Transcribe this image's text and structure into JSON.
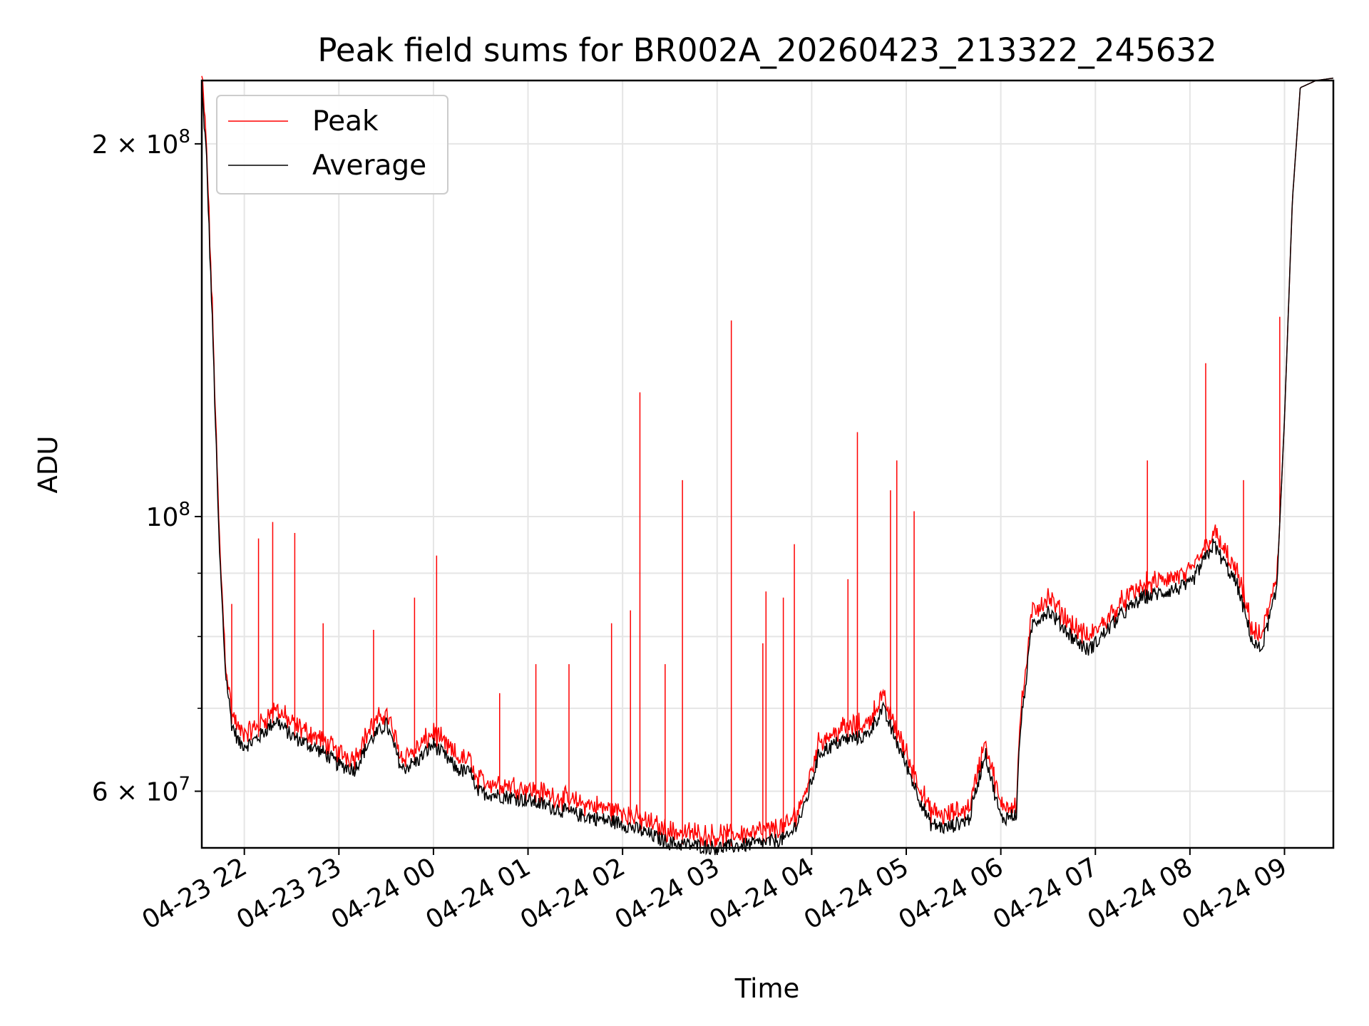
{
  "chart_data": {
    "type": "line",
    "title": "Peak field sums for BR002A_20260423_213322_245632",
    "xlabel": "Time",
    "ylabel": "ADU",
    "y_scale": "log",
    "ylim": [
      54000000,
      225000000
    ],
    "xlim": [
      "04-23 21:33",
      "04-24 09:31"
    ],
    "grid": true,
    "legend_position": "upper-left",
    "x_ticks": [
      "04-23 22",
      "04-23 23",
      "04-24 00",
      "04-24 01",
      "04-24 02",
      "04-24 03",
      "04-24 04",
      "04-24 05",
      "04-24 06",
      "04-24 07",
      "04-24 08",
      "04-24 09"
    ],
    "y_ticks_major": [
      {
        "value": 60000000,
        "label": "6 × 10^7"
      },
      {
        "value": 100000000,
        "label": "10^8"
      },
      {
        "value": 200000000,
        "label": "2 × 10^8"
      }
    ],
    "y_ticks_minor": [
      70000000,
      80000000,
      90000000
    ],
    "series": [
      {
        "name": "Average",
        "color": "#000000",
        "x": [
          "04-23 21:33",
          "04-23 21:36",
          "04-23 21:40",
          "04-23 21:44",
          "04-23 21:48",
          "04-23 21:52",
          "04-23 21:57",
          "04-23 22:03",
          "04-23 22:10",
          "04-23 22:20",
          "04-23 22:30",
          "04-23 22:40",
          "04-23 22:50",
          "04-23 23:00",
          "04-23 23:10",
          "04-23 23:20",
          "04-23 23:30",
          "04-23 23:40",
          "04-23 23:50",
          "04-24 00:00",
          "04-24 00:15",
          "04-24 00:25",
          "04-24 00:26",
          "04-24 01:00",
          "04-24 01:30",
          "04-24 02:00",
          "04-24 02:30",
          "04-24 03:00",
          "04-24 03:30",
          "04-24 03:45",
          "04-24 03:47",
          "04-24 03:55",
          "04-24 04:05",
          "04-24 04:10",
          "04-24 04:20",
          "04-24 04:35",
          "04-24 04:45",
          "04-24 05:00",
          "04-24 05:15",
          "04-24 05:25",
          "04-24 05:40",
          "04-24 05:50",
          "04-24 06:00",
          "04-24 06:10",
          "04-24 06:12",
          "04-24 06:20",
          "04-24 06:30",
          "04-24 06:45",
          "04-24 06:55",
          "04-24 07:00",
          "04-24 07:15",
          "04-24 07:30",
          "04-24 07:45",
          "04-24 08:00",
          "04-24 08:15",
          "04-24 08:30",
          "04-24 08:40",
          "04-24 08:45",
          "04-24 08:55",
          "04-24 09:00",
          "04-24 09:05",
          "04-24 09:10",
          "04-24 09:20",
          "04-24 09:31"
        ],
        "values": [
          222000000,
          195000000,
          140000000,
          95000000,
          75000000,
          68000000,
          65500000,
          65500000,
          66500000,
          68500000,
          66500000,
          65500000,
          64500000,
          63000000,
          62500000,
          66000000,
          68000000,
          62500000,
          63500000,
          65500000,
          62500000,
          62000000,
          60000000,
          59000000,
          57500000,
          56500000,
          54500000,
          54000000,
          54500000,
          55000000,
          55500000,
          58000000,
          64500000,
          65000000,
          66000000,
          66500000,
          70000000,
          63000000,
          56500000,
          56000000,
          57000000,
          64500000,
          57000000,
          57500000,
          66500000,
          82000000,
          84000000,
          80000000,
          78000000,
          79000000,
          83000000,
          86000000,
          87000000,
          88000000,
          95000000,
          88000000,
          79000000,
          78000000,
          87000000,
          120000000,
          180000000,
          222000000,
          225000000,
          226000000
        ]
      },
      {
        "name": "Peak",
        "color": "#ff0000",
        "spikes": [
          {
            "x": "04-23 21:52",
            "value": 85000000
          },
          {
            "x": "04-23 22:09",
            "value": 96000000
          },
          {
            "x": "04-23 22:18",
            "value": 99000000
          },
          {
            "x": "04-23 22:32",
            "value": 97000000
          },
          {
            "x": "04-23 22:50",
            "value": 82000000
          },
          {
            "x": "04-23 23:22",
            "value": 81000000
          },
          {
            "x": "04-23 23:48",
            "value": 86000000
          },
          {
            "x": "04-24 00:02",
            "value": 93000000
          },
          {
            "x": "04-24 00:42",
            "value": 72000000
          },
          {
            "x": "04-24 01:05",
            "value": 76000000
          },
          {
            "x": "04-24 01:26",
            "value": 76000000
          },
          {
            "x": "04-24 01:53",
            "value": 82000000
          },
          {
            "x": "04-24 02:05",
            "value": 84000000
          },
          {
            "x": "04-24 02:11",
            "value": 126000000
          },
          {
            "x": "04-24 02:27",
            "value": 76000000
          },
          {
            "x": "04-24 02:38",
            "value": 107000000
          },
          {
            "x": "04-24 03:09",
            "value": 144000000
          },
          {
            "x": "04-24 03:29",
            "value": 79000000
          },
          {
            "x": "04-24 03:31",
            "value": 87000000
          },
          {
            "x": "04-24 03:42",
            "value": 86000000
          },
          {
            "x": "04-24 03:49",
            "value": 95000000
          },
          {
            "x": "04-24 04:23",
            "value": 89000000
          },
          {
            "x": "04-24 04:29",
            "value": 117000000
          },
          {
            "x": "04-24 04:50",
            "value": 105000000
          },
          {
            "x": "04-24 04:54",
            "value": 111000000
          },
          {
            "x": "04-24 05:05",
            "value": 101000000
          },
          {
            "x": "04-24 07:33",
            "value": 111000000
          },
          {
            "x": "04-24 08:10",
            "value": 133000000
          },
          {
            "x": "04-24 08:34",
            "value": 107000000
          },
          {
            "x": "04-24 08:57",
            "value": 145000000
          }
        ]
      }
    ]
  }
}
